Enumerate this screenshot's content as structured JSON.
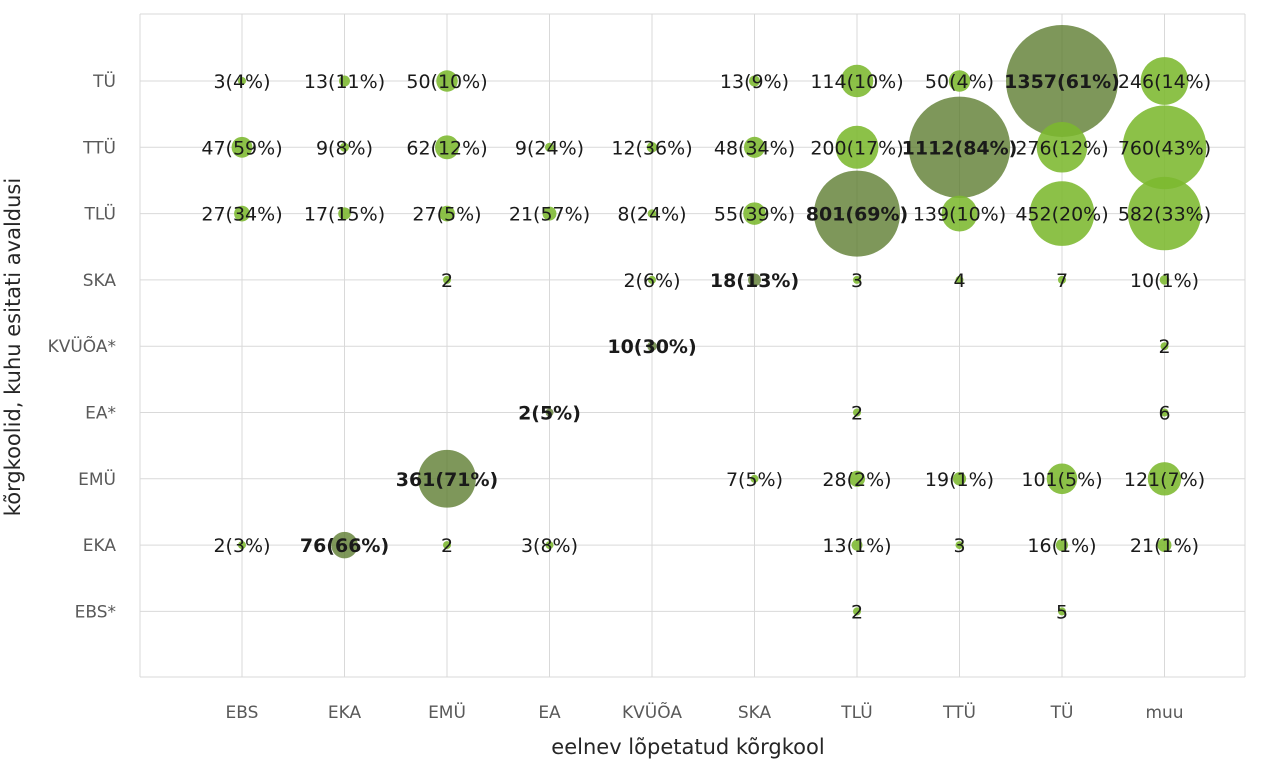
{
  "chart_data": {
    "type": "bubble",
    "title": "",
    "xlabel": "eelnev lõpetatud kõrgkool",
    "ylabel": "kõrgkoolid, kuhu esitati avaldusi",
    "x_categories": [
      "EBS",
      "EKA",
      "EMÜ",
      "EA",
      "KVÜÕA",
      "SKA",
      "TLÜ",
      "TTÜ",
      "TÜ",
      "muu"
    ],
    "y_categories": [
      "TÜ",
      "TTÜ",
      "TLÜ",
      "SKA",
      "KVÜÕA*",
      "EA*",
      "EMÜ",
      "EKA",
      "EBS*"
    ],
    "grid": true,
    "colors": {
      "bubble": "#7cb82f",
      "highlight": "#5a7a2c",
      "grid": "#d9d9d9"
    },
    "points": [
      {
        "x": "EBS",
        "y": "TÜ",
        "value": 3,
        "label": "3(4%)",
        "highlight": false
      },
      {
        "x": "EKA",
        "y": "TÜ",
        "value": 13,
        "label": "13(11%)",
        "highlight": false
      },
      {
        "x": "EMÜ",
        "y": "TÜ",
        "value": 50,
        "label": "50(10%)",
        "highlight": false
      },
      {
        "x": "SKA",
        "y": "TÜ",
        "value": 13,
        "label": "13(9%)",
        "highlight": false
      },
      {
        "x": "TLÜ",
        "y": "TÜ",
        "value": 114,
        "label": "114(10%)",
        "highlight": false
      },
      {
        "x": "TTÜ",
        "y": "TÜ",
        "value": 50,
        "label": "50(4%)",
        "highlight": false
      },
      {
        "x": "TÜ",
        "y": "TÜ",
        "value": 1357,
        "label": "1357(61%)",
        "highlight": true
      },
      {
        "x": "muu",
        "y": "TÜ",
        "value": 246,
        "label": "246(14%)",
        "highlight": false
      },
      {
        "x": "EBS",
        "y": "TTÜ",
        "value": 47,
        "label": "47(59%)",
        "highlight": false
      },
      {
        "x": "EKA",
        "y": "TTÜ",
        "value": 9,
        "label": "9(8%)",
        "highlight": false
      },
      {
        "x": "EMÜ",
        "y": "TTÜ",
        "value": 62,
        "label": "62(12%)",
        "highlight": false
      },
      {
        "x": "EA",
        "y": "TTÜ",
        "value": 9,
        "label": "9(24%)",
        "highlight": false
      },
      {
        "x": "KVÜÕA",
        "y": "TTÜ",
        "value": 12,
        "label": "12(36%)",
        "highlight": false
      },
      {
        "x": "SKA",
        "y": "TTÜ",
        "value": 48,
        "label": "48(34%)",
        "highlight": false
      },
      {
        "x": "TLÜ",
        "y": "TTÜ",
        "value": 200,
        "label": "200(17%)",
        "highlight": false
      },
      {
        "x": "TTÜ",
        "y": "TTÜ",
        "value": 1112,
        "label": "1112(84%)",
        "highlight": true
      },
      {
        "x": "TÜ",
        "y": "TTÜ",
        "value": 276,
        "label": "276(12%)",
        "highlight": false
      },
      {
        "x": "muu",
        "y": "TTÜ",
        "value": 760,
        "label": "760(43%)",
        "highlight": false
      },
      {
        "x": "EBS",
        "y": "TLÜ",
        "value": 27,
        "label": "27(34%)",
        "highlight": false
      },
      {
        "x": "EKA",
        "y": "TLÜ",
        "value": 17,
        "label": "17(15%)",
        "highlight": false
      },
      {
        "x": "EMÜ",
        "y": "TLÜ",
        "value": 27,
        "label": "27(5%)",
        "highlight": false
      },
      {
        "x": "EA",
        "y": "TLÜ",
        "value": 21,
        "label": "21(57%)",
        "highlight": false
      },
      {
        "x": "KVÜÕA",
        "y": "TLÜ",
        "value": 8,
        "label": "8(24%)",
        "highlight": false
      },
      {
        "x": "SKA",
        "y": "TLÜ",
        "value": 55,
        "label": "55(39%)",
        "highlight": false
      },
      {
        "x": "TLÜ",
        "y": "TLÜ",
        "value": 801,
        "label": "801(69%)",
        "highlight": true
      },
      {
        "x": "TTÜ",
        "y": "TLÜ",
        "value": 139,
        "label": "139(10%)",
        "highlight": false
      },
      {
        "x": "TÜ",
        "y": "TLÜ",
        "value": 452,
        "label": "452(20%)",
        "highlight": false
      },
      {
        "x": "muu",
        "y": "TLÜ",
        "value": 582,
        "label": "582(33%)",
        "highlight": false
      },
      {
        "x": "EMÜ",
        "y": "SKA",
        "value": 2,
        "label": "2",
        "highlight": false
      },
      {
        "x": "KVÜÕA",
        "y": "SKA",
        "value": 2,
        "label": "2(6%)",
        "highlight": false
      },
      {
        "x": "SKA",
        "y": "SKA",
        "value": 18,
        "label": "18(13%)",
        "highlight": true
      },
      {
        "x": "TLÜ",
        "y": "SKA",
        "value": 3,
        "label": "3",
        "highlight": false
      },
      {
        "x": "TTÜ",
        "y": "SKA",
        "value": 4,
        "label": "4",
        "highlight": false
      },
      {
        "x": "TÜ",
        "y": "SKA",
        "value": 7,
        "label": "7",
        "highlight": false
      },
      {
        "x": "muu",
        "y": "SKA",
        "value": 10,
        "label": "10(1%)",
        "highlight": false
      },
      {
        "x": "KVÜÕA",
        "y": "KVÜÕA*",
        "value": 10,
        "label": "10(30%)",
        "highlight": true
      },
      {
        "x": "muu",
        "y": "KVÜÕA*",
        "value": 2,
        "label": "2",
        "highlight": false
      },
      {
        "x": "EA",
        "y": "EA*",
        "value": 2,
        "label": "2(5%)",
        "highlight": true
      },
      {
        "x": "TLÜ",
        "y": "EA*",
        "value": 2,
        "label": "2",
        "highlight": false
      },
      {
        "x": "muu",
        "y": "EA*",
        "value": 6,
        "label": "6",
        "highlight": false
      },
      {
        "x": "EMÜ",
        "y": "EMÜ",
        "value": 361,
        "label": "361(71%)",
        "highlight": true
      },
      {
        "x": "SKA",
        "y": "EMÜ",
        "value": 7,
        "label": "7(5%)",
        "highlight": false
      },
      {
        "x": "TLÜ",
        "y": "EMÜ",
        "value": 28,
        "label": "28(2%)",
        "highlight": false
      },
      {
        "x": "TTÜ",
        "y": "EMÜ",
        "value": 19,
        "label": "19(1%)",
        "highlight": false
      },
      {
        "x": "TÜ",
        "y": "EMÜ",
        "value": 101,
        "label": "101(5%)",
        "highlight": false
      },
      {
        "x": "muu",
        "y": "EMÜ",
        "value": 121,
        "label": "121(7%)",
        "highlight": false
      },
      {
        "x": "EBS",
        "y": "EKA",
        "value": 2,
        "label": "2(3%)",
        "highlight": false
      },
      {
        "x": "EKA",
        "y": "EKA",
        "value": 76,
        "label": "76(66%)",
        "highlight": true
      },
      {
        "x": "EMÜ",
        "y": "EKA",
        "value": 2,
        "label": "2",
        "highlight": false
      },
      {
        "x": "EA",
        "y": "EKA",
        "value": 3,
        "label": "3(8%)",
        "highlight": false
      },
      {
        "x": "TLÜ",
        "y": "EKA",
        "value": 13,
        "label": "13(1%)",
        "highlight": false
      },
      {
        "x": "TTÜ",
        "y": "EKA",
        "value": 3,
        "label": "3",
        "highlight": false
      },
      {
        "x": "TÜ",
        "y": "EKA",
        "value": 16,
        "label": "16(1%)",
        "highlight": false
      },
      {
        "x": "muu",
        "y": "EKA",
        "value": 21,
        "label": "21(1%)",
        "highlight": false
      },
      {
        "x": "TLÜ",
        "y": "EBS*",
        "value": 2,
        "label": "2",
        "highlight": false
      },
      {
        "x": "TÜ",
        "y": "EBS*",
        "value": 5,
        "label": "5",
        "highlight": false
      }
    ]
  }
}
